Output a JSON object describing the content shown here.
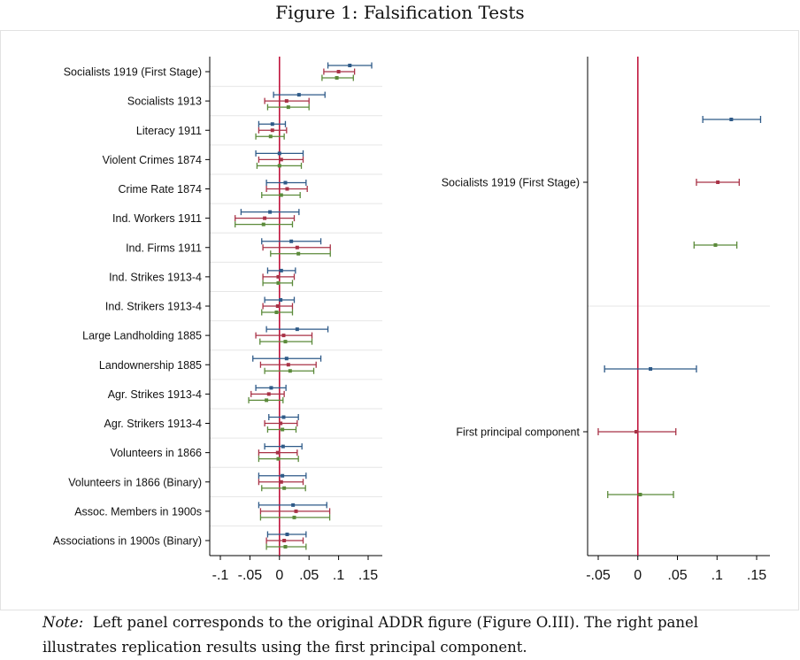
{
  "figure": {
    "title": "Figure 1: Falsification Tests",
    "note_label": "Note:",
    "note_text": "Left panel corresponds to the original ADDR figure (Figure O.III). The right panel illustrates replication results using the first principal component."
  },
  "colors": {
    "series_1": "#2e5a88",
    "series_2": "#a83246",
    "series_3": "#5b8a3a",
    "zero_line": "#c0143c",
    "axis": "#000000",
    "grid": "#e6e6e6"
  },
  "chart_data": [
    {
      "type": "scatter",
      "style": "coefficient-plot-horizontal-ci",
      "categories": [
        "Socialists 1919 (First Stage)",
        "Socialists 1913",
        "Literacy 1911",
        "Violent Crimes 1874",
        "Crime Rate 1874",
        "Ind. Workers 1911",
        "Ind. Firms 1911",
        "Ind. Strikes 1913-4",
        "Ind. Strikers 1913-4",
        "Large Landholding 1885",
        "Landownership 1885",
        "Agr. Strikes 1913-4",
        "Agr. Strikers 1913-4",
        "Volunteers in 1866",
        "Volunteers in 1866 (Binary)",
        "Assoc. Members in 1900s",
        "Associations in 1900s (Binary)"
      ],
      "xlim": [
        -0.11,
        0.17
      ],
      "xticks": [
        -0.1,
        -0.05,
        0,
        0.05,
        0.1,
        0.15
      ],
      "xtick_labels": [
        "-.1",
        "-.05",
        "0",
        ".05",
        ".1",
        ".15"
      ],
      "zero_line": 0,
      "grid": "horizontal",
      "series": [
        {
          "point": [
            0.119,
            0.033,
            -0.012,
            0.0,
            0.01,
            -0.016,
            0.02,
            0.003,
            0.002,
            0.03,
            0.012,
            -0.014,
            0.007,
            0.006,
            0.005,
            0.023,
            0.013
          ],
          "lower": [
            0.082,
            -0.01,
            -0.035,
            -0.04,
            -0.022,
            -0.065,
            -0.03,
            -0.02,
            -0.025,
            -0.022,
            -0.045,
            -0.04,
            -0.018,
            -0.025,
            -0.035,
            -0.035,
            -0.02
          ],
          "upper": [
            0.156,
            0.077,
            0.01,
            0.04,
            0.045,
            0.033,
            0.07,
            0.027,
            0.025,
            0.082,
            0.07,
            0.011,
            0.032,
            0.038,
            0.045,
            0.08,
            0.045
          ]
        },
        {
          "point": [
            0.1,
            0.012,
            -0.012,
            0.003,
            0.013,
            -0.025,
            0.03,
            -0.002,
            -0.003,
            0.007,
            0.015,
            -0.018,
            0.002,
            -0.003,
            0.003,
            0.028,
            0.008
          ],
          "lower": [
            0.075,
            -0.025,
            -0.035,
            -0.035,
            -0.022,
            -0.075,
            -0.028,
            -0.028,
            -0.028,
            -0.04,
            -0.032,
            -0.048,
            -0.025,
            -0.035,
            -0.035,
            -0.032,
            -0.022
          ],
          "upper": [
            0.127,
            0.05,
            0.012,
            0.04,
            0.047,
            0.025,
            0.086,
            0.025,
            0.022,
            0.055,
            0.062,
            0.008,
            0.03,
            0.03,
            0.04,
            0.085,
            0.04
          ]
        },
        {
          "point": [
            0.097,
            0.015,
            -0.015,
            0.0,
            0.003,
            -0.027,
            0.032,
            -0.002,
            -0.005,
            0.01,
            0.018,
            -0.022,
            0.005,
            -0.002,
            0.008,
            0.025,
            0.01
          ],
          "lower": [
            0.072,
            -0.02,
            -0.04,
            -0.038,
            -0.03,
            -0.075,
            -0.015,
            -0.028,
            -0.03,
            -0.033,
            -0.025,
            -0.052,
            -0.02,
            -0.035,
            -0.03,
            -0.032,
            -0.022
          ],
          "upper": [
            0.125,
            0.05,
            0.008,
            0.037,
            0.035,
            0.022,
            0.086,
            0.022,
            0.022,
            0.055,
            0.058,
            0.006,
            0.028,
            0.032,
            0.044,
            0.085,
            0.045
          ]
        }
      ]
    },
    {
      "type": "scatter",
      "style": "coefficient-plot-horizontal-ci",
      "categories": [
        "Socialists 1919 (First Stage)",
        "First principal component"
      ],
      "xlim": [
        -0.065,
        0.167
      ],
      "xticks": [
        -0.05,
        0,
        0.05,
        0.1,
        0.15
      ],
      "xtick_labels": [
        "-.05",
        "0",
        ".05",
        ".1",
        ".15"
      ],
      "zero_line": 0,
      "grid": "horizontal",
      "series": [
        {
          "point": [
            0.118,
            0.016
          ],
          "lower": [
            0.082,
            -0.042
          ],
          "upper": [
            0.155,
            0.074
          ]
        },
        {
          "point": [
            0.101,
            -0.002
          ],
          "lower": [
            0.074,
            -0.05
          ],
          "upper": [
            0.128,
            0.048
          ]
        },
        {
          "point": [
            0.098,
            0.003
          ],
          "lower": [
            0.071,
            -0.038
          ],
          "upper": [
            0.125,
            0.045
          ]
        }
      ]
    }
  ]
}
